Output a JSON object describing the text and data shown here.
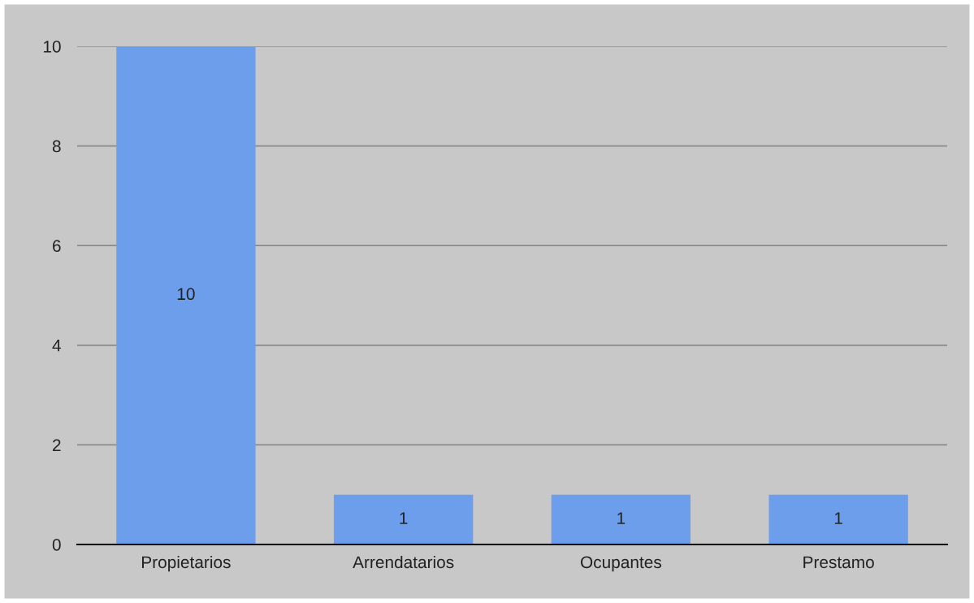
{
  "chart_data": {
    "type": "bar",
    "categories": [
      "Propietarios",
      "Arrendatarios",
      "Ocupantes",
      "Prestamo"
    ],
    "values": [
      10,
      1,
      1,
      1
    ],
    "color": "#6d9eeb",
    "ylim": [
      0,
      10
    ],
    "yticks": [
      0,
      2,
      4,
      6,
      8,
      10
    ],
    "grid": "y",
    "data_labels": true
  }
}
